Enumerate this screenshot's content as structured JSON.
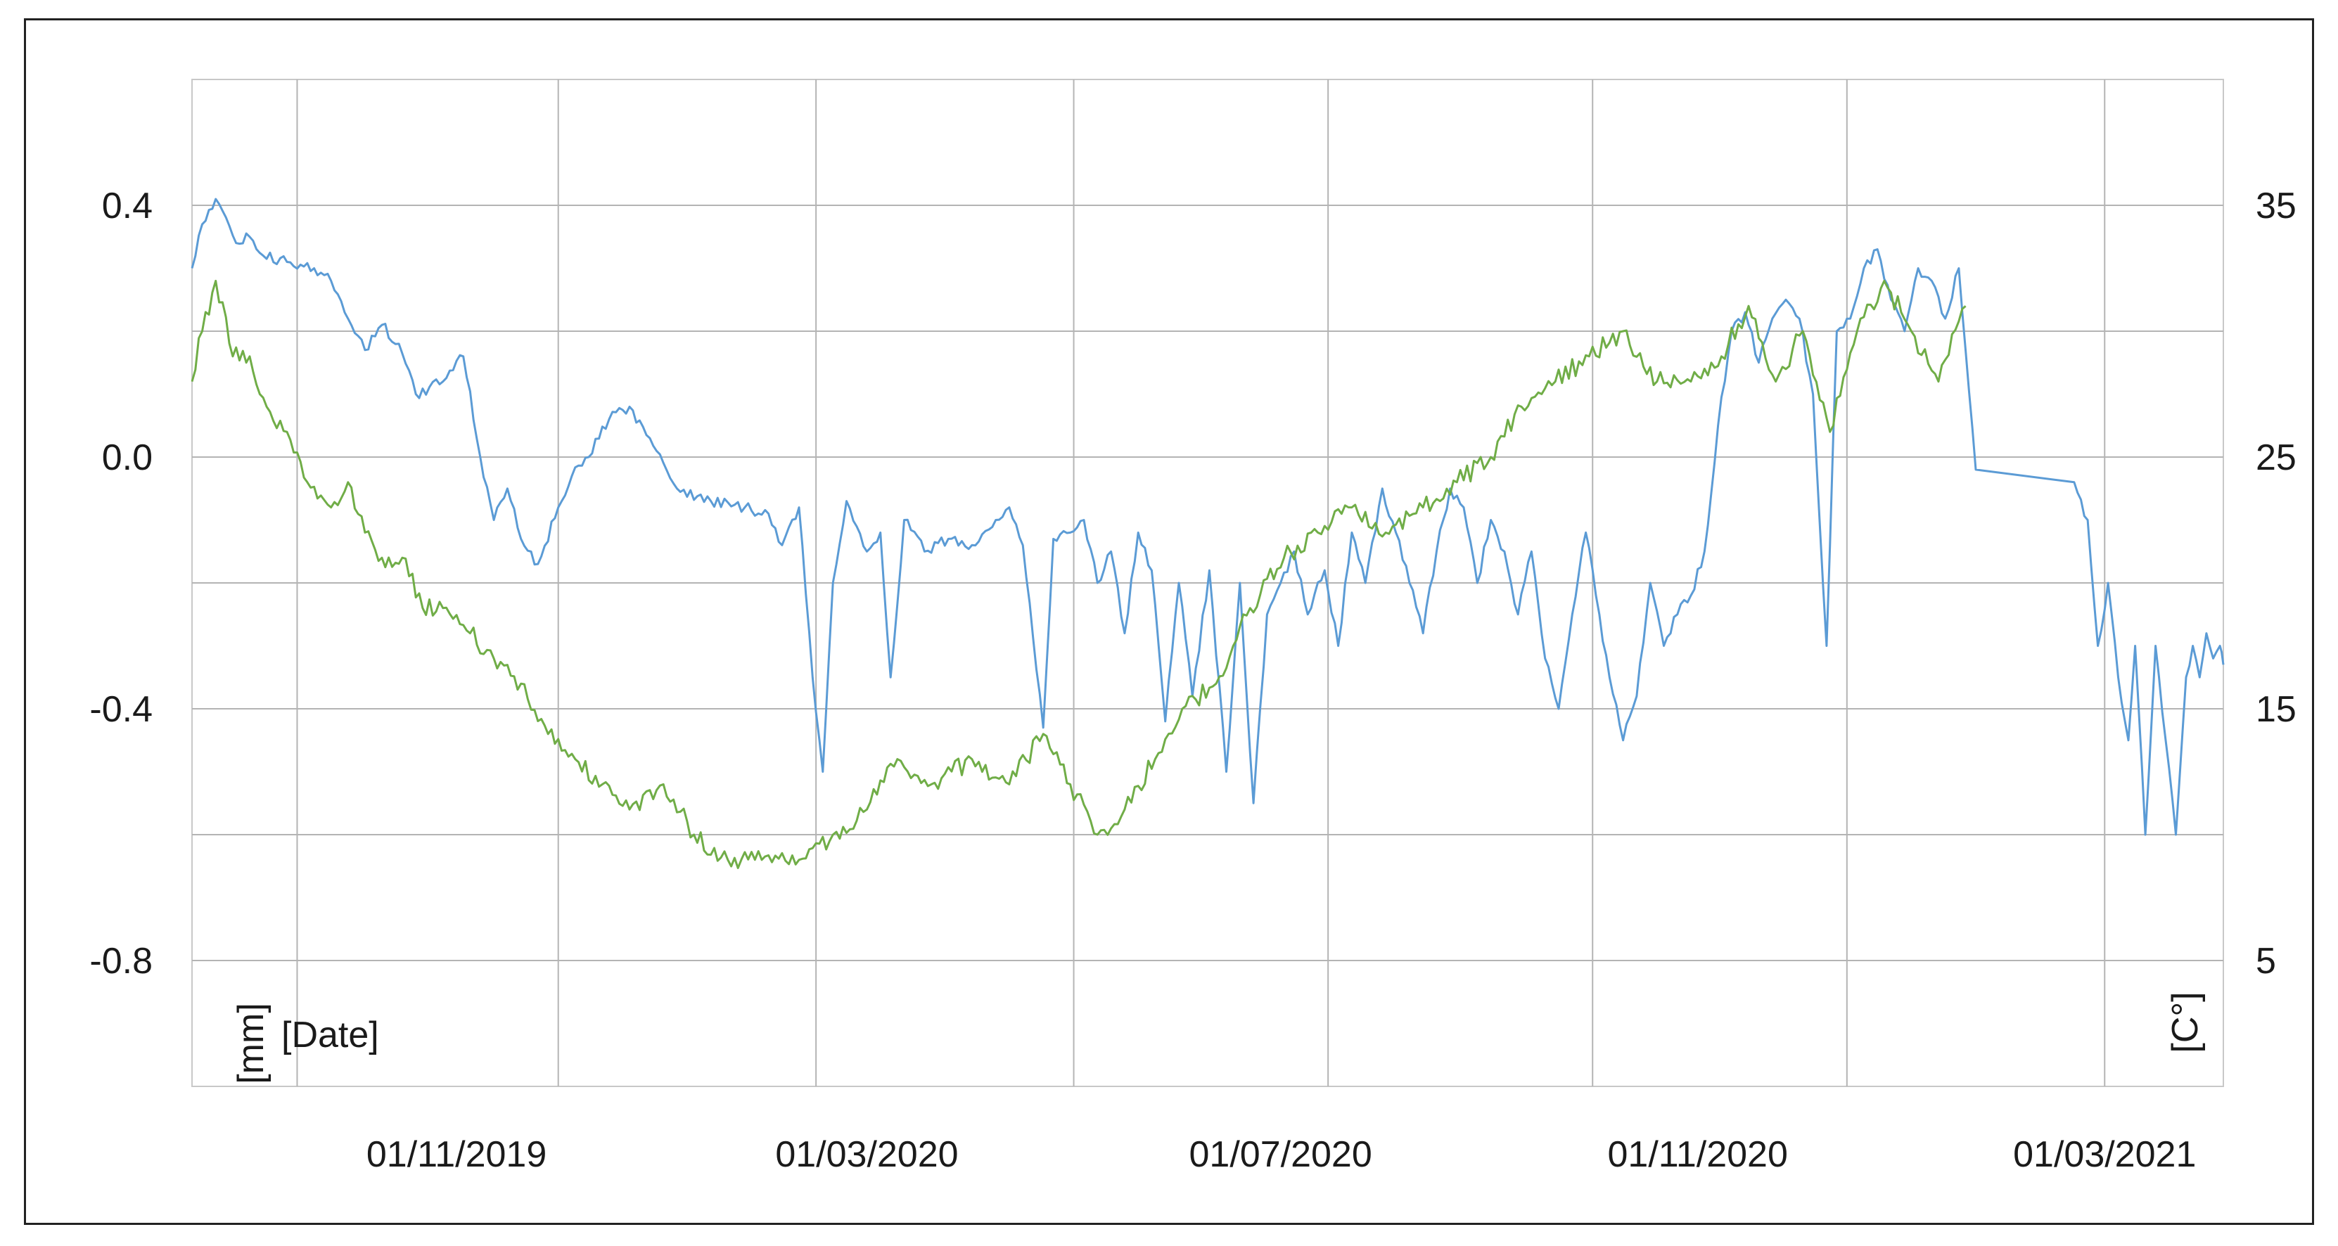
{
  "chart_data": {
    "type": "line",
    "x_axis": {
      "type": "date",
      "range": [
        "2019-08-15",
        "2021-04-05"
      ],
      "gridlines": [
        "2019-09-15",
        "2019-12-01",
        "2020-02-15",
        "2020-05-01",
        "2020-07-15",
        "2020-10-01",
        "2020-12-15",
        "2021-03-01"
      ],
      "tick_labels": [
        "01/11/2019",
        "01/03/2020",
        "01/07/2020",
        "01/11/2020",
        "01/03/2021"
      ],
      "tick_label_dates": [
        "2019-11-01",
        "2020-03-01",
        "2020-07-01",
        "2020-11-01",
        "2021-03-01"
      ],
      "unit_label": "[Date]"
    },
    "y_left": {
      "unit_label": "[mm]",
      "range": [
        -1.0,
        0.6
      ],
      "ticks": [
        0.4,
        0.0,
        -0.4,
        -0.8
      ],
      "tick_labels": [
        "0.4",
        "0.0",
        "-0.4",
        "-0.8"
      ],
      "gridlines": [
        0.4,
        0.2,
        0.0,
        -0.2,
        -0.4,
        -0.6,
        -0.8
      ]
    },
    "y_right": {
      "unit_label": "[C°]",
      "range": [
        0.0,
        40.0
      ],
      "ticks": [
        35,
        25,
        15,
        5
      ],
      "tick_labels": [
        "35",
        "25",
        "15",
        "5"
      ]
    },
    "grid": true,
    "legend": "none",
    "series": [
      {
        "axis": "left",
        "color": "#5b9bd5",
        "points": [
          [
            "2019-08-15",
            0.3
          ],
          [
            "2019-08-18",
            0.37
          ],
          [
            "2019-08-22",
            0.41
          ],
          [
            "2019-08-28",
            0.34
          ],
          [
            "2019-09-01",
            0.35
          ],
          [
            "2019-09-05",
            0.32
          ],
          [
            "2019-09-12",
            0.31
          ],
          [
            "2019-09-20",
            0.3
          ],
          [
            "2019-09-25",
            0.28
          ],
          [
            "2019-09-30",
            0.22
          ],
          [
            "2019-10-05",
            0.17
          ],
          [
            "2019-10-10",
            0.21
          ],
          [
            "2019-10-15",
            0.18
          ],
          [
            "2019-10-20",
            0.1
          ],
          [
            "2019-10-28",
            0.12
          ],
          [
            "2019-11-03",
            0.16
          ],
          [
            "2019-11-08",
            0.0
          ],
          [
            "2019-11-12",
            -0.1
          ],
          [
            "2019-11-16",
            -0.05
          ],
          [
            "2019-11-20",
            -0.13
          ],
          [
            "2019-11-25",
            -0.17
          ],
          [
            "2019-12-01",
            -0.08
          ],
          [
            "2019-12-05",
            -0.03
          ],
          [
            "2019-12-10",
            0.0
          ],
          [
            "2019-12-16",
            0.06
          ],
          [
            "2019-12-22",
            0.08
          ],
          [
            "2019-12-28",
            0.03
          ],
          [
            "2020-01-05",
            -0.05
          ],
          [
            "2020-01-15",
            -0.07
          ],
          [
            "2020-01-25",
            -0.08
          ],
          [
            "2020-02-01",
            -0.09
          ],
          [
            "2020-02-05",
            -0.14
          ],
          [
            "2020-02-10",
            -0.08
          ],
          [
            "2020-02-14",
            -0.35
          ],
          [
            "2020-02-17",
            -0.5
          ],
          [
            "2020-02-20",
            -0.2
          ],
          [
            "2020-02-24",
            -0.07
          ],
          [
            "2020-03-01",
            -0.15
          ],
          [
            "2020-03-05",
            -0.12
          ],
          [
            "2020-03-08",
            -0.35
          ],
          [
            "2020-03-12",
            -0.1
          ],
          [
            "2020-03-18",
            -0.15
          ],
          [
            "2020-03-25",
            -0.13
          ],
          [
            "2020-04-01",
            -0.14
          ],
          [
            "2020-04-08",
            -0.1
          ],
          [
            "2020-04-12",
            -0.08
          ],
          [
            "2020-04-16",
            -0.14
          ],
          [
            "2020-04-22",
            -0.43
          ],
          [
            "2020-04-25",
            -0.13
          ],
          [
            "2020-04-30",
            -0.12
          ],
          [
            "2020-05-04",
            -0.1
          ],
          [
            "2020-05-08",
            -0.2
          ],
          [
            "2020-05-12",
            -0.15
          ],
          [
            "2020-05-16",
            -0.28
          ],
          [
            "2020-05-20",
            -0.12
          ],
          [
            "2020-05-24",
            -0.18
          ],
          [
            "2020-05-28",
            -0.42
          ],
          [
            "2020-06-01",
            -0.2
          ],
          [
            "2020-06-05",
            -0.38
          ],
          [
            "2020-06-10",
            -0.18
          ],
          [
            "2020-06-15",
            -0.5
          ],
          [
            "2020-06-19",
            -0.2
          ],
          [
            "2020-06-23",
            -0.55
          ],
          [
            "2020-06-27",
            -0.25
          ],
          [
            "2020-07-01",
            -0.2
          ],
          [
            "2020-07-05",
            -0.15
          ],
          [
            "2020-07-09",
            -0.25
          ],
          [
            "2020-07-14",
            -0.18
          ],
          [
            "2020-07-18",
            -0.3
          ],
          [
            "2020-07-22",
            -0.12
          ],
          [
            "2020-07-26",
            -0.2
          ],
          [
            "2020-07-31",
            -0.05
          ],
          [
            "2020-08-04",
            -0.12
          ],
          [
            "2020-08-08",
            -0.2
          ],
          [
            "2020-08-12",
            -0.28
          ],
          [
            "2020-08-16",
            -0.15
          ],
          [
            "2020-08-20",
            -0.05
          ],
          [
            "2020-08-24",
            -0.08
          ],
          [
            "2020-08-28",
            -0.2
          ],
          [
            "2020-09-01",
            -0.1
          ],
          [
            "2020-09-05",
            -0.15
          ],
          [
            "2020-09-09",
            -0.25
          ],
          [
            "2020-09-13",
            -0.15
          ],
          [
            "2020-09-17",
            -0.32
          ],
          [
            "2020-09-21",
            -0.4
          ],
          [
            "2020-09-25",
            -0.25
          ],
          [
            "2020-09-29",
            -0.12
          ],
          [
            "2020-10-02",
            -0.22
          ],
          [
            "2020-10-06",
            -0.35
          ],
          [
            "2020-10-10",
            -0.45
          ],
          [
            "2020-10-14",
            -0.38
          ],
          [
            "2020-10-18",
            -0.2
          ],
          [
            "2020-10-22",
            -0.3
          ],
          [
            "2020-10-26",
            -0.25
          ],
          [
            "2020-10-30",
            -0.22
          ],
          [
            "2020-11-03",
            -0.15
          ],
          [
            "2020-11-07",
            0.05
          ],
          [
            "2020-11-11",
            0.2
          ],
          [
            "2020-11-15",
            0.23
          ],
          [
            "2020-11-19",
            0.15
          ],
          [
            "2020-11-23",
            0.22
          ],
          [
            "2020-11-27",
            0.25
          ],
          [
            "2020-12-01",
            0.22
          ],
          [
            "2020-12-05",
            0.1
          ],
          [
            "2020-12-09",
            -0.3
          ],
          [
            "2020-12-12",
            0.2
          ],
          [
            "2020-12-16",
            0.22
          ],
          [
            "2020-12-20",
            0.3
          ],
          [
            "2020-12-24",
            0.33
          ],
          [
            "2020-12-28",
            0.25
          ],
          [
            "2021-01-01",
            0.2
          ],
          [
            "2021-01-05",
            0.3
          ],
          [
            "2021-01-09",
            0.28
          ],
          [
            "2021-01-13",
            0.22
          ],
          [
            "2021-01-17",
            0.3
          ],
          [
            "2021-01-22",
            -0.02
          ],
          [
            "2021-02-20",
            -0.04
          ],
          [
            "2021-02-24",
            -0.1
          ],
          [
            "2021-02-27",
            -0.3
          ],
          [
            "2021-03-02",
            -0.2
          ],
          [
            "2021-03-05",
            -0.35
          ],
          [
            "2021-03-08",
            -0.45
          ],
          [
            "2021-03-10",
            -0.3
          ],
          [
            "2021-03-13",
            -0.6
          ],
          [
            "2021-03-16",
            -0.3
          ],
          [
            "2021-03-19",
            -0.45
          ],
          [
            "2021-03-22",
            -0.6
          ],
          [
            "2021-03-25",
            -0.35
          ],
          [
            "2021-03-27",
            -0.3
          ],
          [
            "2021-03-29",
            -0.35
          ],
          [
            "2021-03-31",
            -0.28
          ],
          [
            "2021-04-02",
            -0.32
          ],
          [
            "2021-04-04",
            -0.3
          ],
          [
            "2021-04-05",
            -0.33
          ]
        ]
      },
      {
        "axis": "right",
        "color": "#70ad47",
        "points": [
          [
            "2019-08-15",
            28
          ],
          [
            "2019-08-18",
            30
          ],
          [
            "2019-08-22",
            32
          ],
          [
            "2019-08-27",
            29
          ],
          [
            "2019-09-01",
            29
          ],
          [
            "2019-09-06",
            27
          ],
          [
            "2019-09-12",
            26
          ],
          [
            "2019-09-18",
            24
          ],
          [
            "2019-09-25",
            23
          ],
          [
            "2019-09-30",
            24
          ],
          [
            "2019-10-05",
            22
          ],
          [
            "2019-10-10",
            21
          ],
          [
            "2019-10-16",
            21
          ],
          [
            "2019-10-22",
            19
          ],
          [
            "2019-10-28",
            19
          ],
          [
            "2019-11-05",
            18
          ],
          [
            "2019-11-12",
            17
          ],
          [
            "2019-11-20",
            16
          ],
          [
            "2019-11-28",
            14
          ],
          [
            "2019-12-06",
            13
          ],
          [
            "2019-12-14",
            12
          ],
          [
            "2019-12-22",
            11
          ],
          [
            "2020-01-01",
            12
          ],
          [
            "2020-01-10",
            10
          ],
          [
            "2020-01-20",
            9
          ],
          [
            "2020-01-30",
            9
          ],
          [
            "2020-02-10",
            9
          ],
          [
            "2020-02-20",
            10
          ],
          [
            "2020-03-01",
            11
          ],
          [
            "2020-03-10",
            13
          ],
          [
            "2020-03-20",
            12
          ],
          [
            "2020-04-01",
            13
          ],
          [
            "2020-04-12",
            12
          ],
          [
            "2020-04-22",
            14
          ],
          [
            "2020-04-30",
            12
          ],
          [
            "2020-05-08",
            10
          ],
          [
            "2020-05-16",
            11
          ],
          [
            "2020-05-25",
            13
          ],
          [
            "2020-06-02",
            15
          ],
          [
            "2020-06-12",
            16
          ],
          [
            "2020-06-22",
            19
          ],
          [
            "2020-07-02",
            21
          ],
          [
            "2020-07-12",
            22
          ],
          [
            "2020-07-22",
            23
          ],
          [
            "2020-08-01",
            22
          ],
          [
            "2020-08-12",
            23
          ],
          [
            "2020-08-22",
            24
          ],
          [
            "2020-09-01",
            25
          ],
          [
            "2020-09-10",
            27
          ],
          [
            "2020-09-20",
            28
          ],
          [
            "2020-09-30",
            29
          ],
          [
            "2020-10-10",
            30
          ],
          [
            "2020-10-20",
            28
          ],
          [
            "2020-10-30",
            28
          ],
          [
            "2020-11-08",
            29
          ],
          [
            "2020-11-16",
            31
          ],
          [
            "2020-11-24",
            28
          ],
          [
            "2020-12-02",
            30
          ],
          [
            "2020-12-10",
            26
          ],
          [
            "2020-12-18",
            30
          ],
          [
            "2020-12-26",
            32
          ],
          [
            "2021-01-03",
            30
          ],
          [
            "2021-01-11",
            28
          ],
          [
            "2021-01-19",
            31
          ]
        ]
      }
    ]
  }
}
